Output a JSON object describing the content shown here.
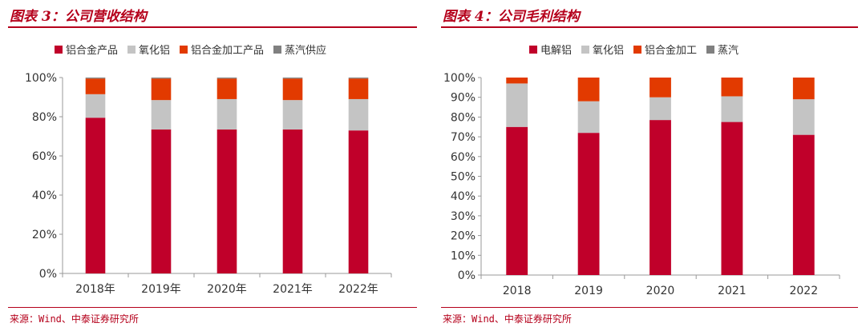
{
  "colors": {
    "red": "#c0002a",
    "gray": "#c4c4c4",
    "orange": "#e23a00",
    "dark": "#808080",
    "title": "#b5001b"
  },
  "chart_data": [
    {
      "type": "bar",
      "stacked": true,
      "title": "图表 3：公司营收结构",
      "source": "来源：Wind、中泰证券研究所",
      "categories": [
        "2018年",
        "2019年",
        "2020年",
        "2021年",
        "2022年"
      ],
      "ylim": [
        0,
        100
      ],
      "yticks": [
        0,
        20,
        40,
        60,
        80,
        100
      ],
      "ytick_labels": [
        "0%",
        "20%",
        "40%",
        "60%",
        "80%",
        "100%"
      ],
      "legend_position": "top",
      "series": [
        {
          "name": "铝合金产品",
          "color": "#c0002a",
          "values": [
            79.5,
            73.5,
            73.5,
            73.5,
            73.0
          ]
        },
        {
          "name": "氧化铝",
          "color": "#c4c4c4",
          "values": [
            12.0,
            15.0,
            15.5,
            15.0,
            16.0
          ]
        },
        {
          "name": "铝合金加工产品",
          "color": "#e23a00",
          "values": [
            8.0,
            11.0,
            10.5,
            11.0,
            10.5
          ]
        },
        {
          "name": "蒸汽供应",
          "color": "#808080",
          "values": [
            0.5,
            0.5,
            0.5,
            0.5,
            0.5
          ]
        }
      ]
    },
    {
      "type": "bar",
      "stacked": true,
      "title": "图表 4：公司毛利结构",
      "source": "来源：Wind、中泰证券研究所",
      "categories": [
        "2018",
        "2019",
        "2020",
        "2021",
        "2022"
      ],
      "ylim": [
        0,
        100
      ],
      "yticks": [
        0,
        10,
        20,
        30,
        40,
        50,
        60,
        70,
        80,
        90,
        100
      ],
      "ytick_labels": [
        "0%",
        "10%",
        "20%",
        "30%",
        "40%",
        "50%",
        "60%",
        "70%",
        "80%",
        "90%",
        "100%"
      ],
      "legend_position": "top",
      "series": [
        {
          "name": "电解铝",
          "color": "#c0002a",
          "values": [
            75.0,
            72.0,
            78.5,
            77.5,
            71.0
          ]
        },
        {
          "name": "氧化铝",
          "color": "#c4c4c4",
          "values": [
            22.0,
            16.0,
            11.5,
            13.0,
            18.0
          ]
        },
        {
          "name": "铝合金加工",
          "color": "#e23a00",
          "values": [
            3.0,
            12.0,
            10.0,
            9.5,
            11.0
          ]
        },
        {
          "name": "蒸汽",
          "color": "#808080",
          "values": [
            0,
            0,
            0,
            0,
            0
          ]
        }
      ]
    }
  ]
}
